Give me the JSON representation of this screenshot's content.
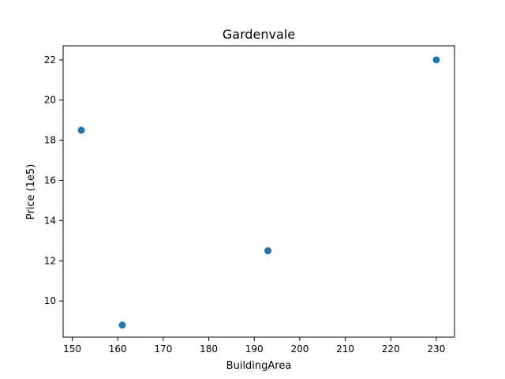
{
  "chart_data": {
    "type": "scatter",
    "title": "Gardenvale",
    "xlabel": "BuildingArea",
    "ylabel": "Price (1e5)",
    "xlim": [
      148,
      234
    ],
    "ylim": [
      8.2,
      22.7
    ],
    "xticks": [
      150,
      160,
      170,
      180,
      190,
      200,
      210,
      220,
      230
    ],
    "yticks": [
      10,
      12,
      14,
      16,
      18,
      20,
      22
    ],
    "grid": false,
    "legend": "none",
    "marker_color": "#1f77b4",
    "points": [
      {
        "x": 152,
        "y": 18.5
      },
      {
        "x": 161,
        "y": 8.8
      },
      {
        "x": 193,
        "y": 12.5
      },
      {
        "x": 230,
        "y": 22.0
      }
    ]
  }
}
